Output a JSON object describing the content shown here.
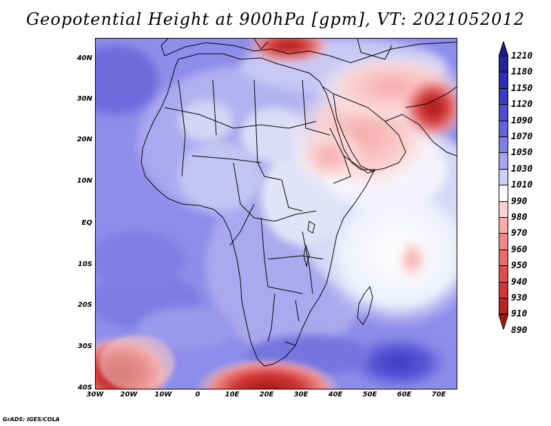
{
  "title": "Geopotential Height at 900hPa [gpm], VT: 2021052012",
  "credit": "GrADS: IGES/COLA",
  "y_axis_labels": [
    "40N",
    "30N",
    "20N",
    "10N",
    "EQ",
    "10S",
    "20S",
    "30S",
    "40S"
  ],
  "x_axis_labels": [
    "30W",
    "20W",
    "10W",
    "0",
    "10E",
    "20E",
    "30E",
    "40E",
    "50E",
    "60E",
    "70E"
  ],
  "colorbar": {
    "labels": [
      "1210",
      "1180",
      "1150",
      "1120",
      "1090",
      "1070",
      "1050",
      "1030",
      "1010",
      "990",
      "980",
      "970",
      "960",
      "950",
      "940",
      "930",
      "910",
      "890"
    ],
    "colors": [
      "#1a1a8c",
      "#23239e",
      "#2d2db5",
      "#3a3ac4",
      "#4d4dd2",
      "#6464dc",
      "#7f7fe4",
      "#a5a5ee",
      "#cfcff6",
      "#ffffff",
      "#fbd2d2",
      "#f6aaaa",
      "#f08a8a",
      "#e86a6a",
      "#de4e4e",
      "#d03636",
      "#bb2424",
      "#a61616"
    ]
  }
}
